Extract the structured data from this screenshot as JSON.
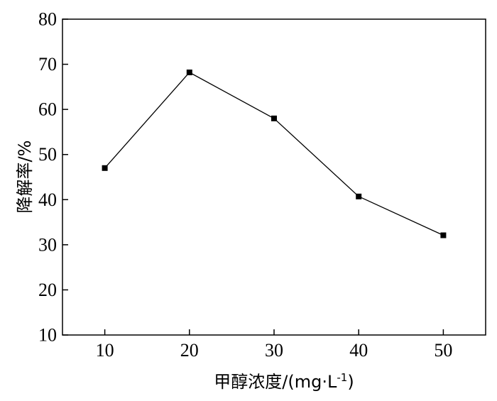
{
  "chart_data": {
    "type": "line",
    "x": [
      10,
      20,
      30,
      40,
      50
    ],
    "series": [
      {
        "values": [
          47,
          68.2,
          58,
          40.7,
          32.1
        ]
      }
    ],
    "xlabel": "甲醇浓度/(mg·L",
    "xlabel_superscript": "-1",
    "xlabel_suffix": ")",
    "ylabel": "降解率/%",
    "xlim": [
      5,
      55
    ],
    "ylim": [
      10,
      80
    ],
    "xticks": [
      10,
      20,
      30,
      40,
      50
    ],
    "yticks": [
      10,
      20,
      30,
      40,
      50,
      60,
      70,
      80
    ],
    "grid": false,
    "marker": "square",
    "color": "#000000"
  }
}
